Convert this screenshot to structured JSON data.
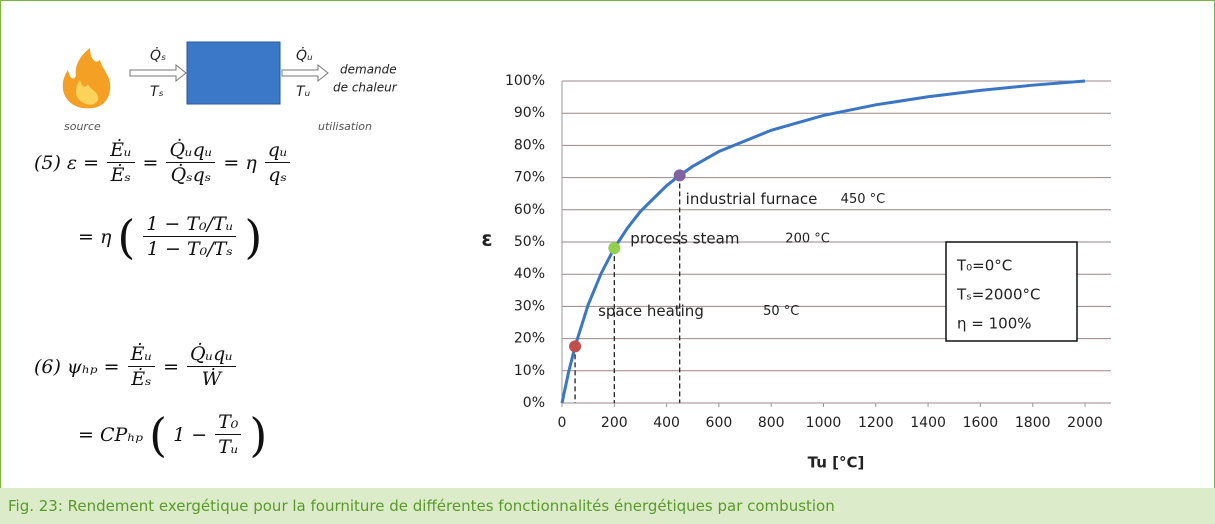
{
  "diagram": {
    "flow_in": "Q̇ₛ",
    "temp_in": "Tₛ",
    "flow_out": "Q̇ᵤ",
    "temp_out": "Tᵤ",
    "demand": [
      "demande",
      "de chaleur"
    ],
    "source": "source",
    "use": "utilisation"
  },
  "equations": [
    {
      "lines": [
        [
          "(5)",
          "ε =",
          {
            "num": "Ėᵤ",
            "den": "Ėₛ"
          },
          "=",
          {
            "num": "Q̇ᵤqᵤ",
            "den": "Q̇ₛqₛ"
          },
          "= η",
          {
            "num": "qᵤ",
            "den": "qₛ"
          }
        ],
        [
          "= η",
          "(",
          {
            "num": "1 − T₀/Tᵤ",
            "den": "1 − T₀/Tₛ"
          },
          ")"
        ]
      ]
    },
    {
      "lines": [
        [
          "(6)",
          "ψₕₚ =",
          {
            "num": "Ėᵤ",
            "den": "Ėₛ"
          },
          "=",
          {
            "num": "Q̇ᵤqᵤ",
            "den": "Ẇ"
          }
        ],
        [
          "= CPₕₚ",
          "(",
          "1 −",
          {
            "num": "T₀",
            "den": "Tᵤ"
          },
          ")"
        ]
      ]
    }
  ],
  "chart_data": {
    "type": "line",
    "y_label": "ε",
    "x_label": "Tu [°C]",
    "x": [
      0,
      25,
      50,
      100,
      150,
      200,
      250,
      300,
      400,
      450,
      500,
      600,
      800,
      1000,
      1200,
      1400,
      1600,
      1800,
      2000
    ],
    "series": [
      {
        "color": "#3a76c4",
        "values": [
          0,
          9.5,
          17.6,
          30.5,
          40.3,
          48.1,
          54.3,
          59.5,
          67.5,
          70.7,
          73.5,
          78.1,
          84.7,
          89.3,
          92.6,
          95.1,
          97.1,
          98.7,
          100
        ]
      }
    ],
    "points": [
      {
        "x": 50,
        "y": 17.6,
        "color": "#c0504d",
        "label": "space heating",
        "temp": "50 °C"
      },
      {
        "x": 200,
        "y": 48.1,
        "color": "#92d050",
        "label": "process steam",
        "temp": "200 °C"
      },
      {
        "x": 450,
        "y": 70.7,
        "color": "#8064a2",
        "label": "industrial furnace",
        "temp": "450 °C"
      }
    ],
    "note": [
      "T₀=0°C",
      "Tₛ=2000°C",
      "η = 100%"
    ],
    "xlim": [
      0,
      2100
    ],
    "xticks": [
      0,
      200,
      400,
      600,
      800,
      1000,
      1200,
      1400,
      1600,
      1800,
      2000
    ],
    "ylim": [
      0,
      100
    ],
    "yticks": [
      {
        "value": 0,
        "label": "0%"
      },
      {
        "value": 10,
        "label": "10%"
      },
      {
        "value": 20,
        "label": "20%"
      },
      {
        "value": 30,
        "label": "30%"
      },
      {
        "value": 40,
        "label": "40%"
      },
      {
        "value": 50,
        "label": "50%"
      },
      {
        "value": 60,
        "label": "60%"
      },
      {
        "value": 70,
        "label": "70%"
      },
      {
        "value": 80,
        "label": "80%"
      },
      {
        "value": 90,
        "label": "90%"
      },
      {
        "value": 100,
        "label": "100%"
      }
    ],
    "grid": true
  },
  "caption": "Fig. 23: Rendement exergétique pour la fourniture de différentes fonctionnalités énergétiques par combustion"
}
